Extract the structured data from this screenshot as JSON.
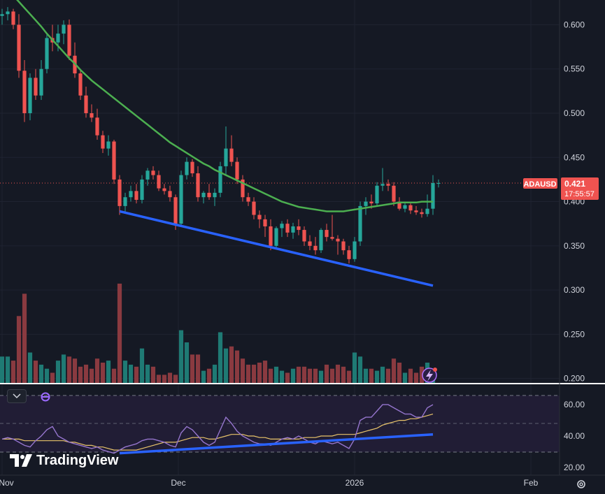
{
  "chart_data": {
    "type": "candlestick",
    "symbol": "ADAUSD",
    "last_price": "0.421",
    "countdown": "17:55:57",
    "price_axis": {
      "ticks": [
        "0.600",
        "0.550",
        "0.500",
        "0.450",
        "0.400",
        "0.350",
        "0.300",
        "0.250",
        "0.200"
      ],
      "ylim": [
        0.195,
        0.628
      ]
    },
    "time_axis": {
      "ticks": [
        "Nov",
        "Dec",
        "2026",
        "Feb"
      ]
    },
    "candles": [
      {
        "o": 0.61,
        "h": 0.618,
        "l": 0.6,
        "c": 0.612
      },
      {
        "o": 0.612,
        "h": 0.62,
        "l": 0.605,
        "c": 0.615
      },
      {
        "o": 0.615,
        "h": 0.618,
        "l": 0.595,
        "c": 0.6
      },
      {
        "o": 0.6,
        "h": 0.612,
        "l": 0.54,
        "c": 0.548
      },
      {
        "o": 0.548,
        "h": 0.56,
        "l": 0.49,
        "c": 0.5
      },
      {
        "o": 0.5,
        "h": 0.545,
        "l": 0.492,
        "c": 0.54
      },
      {
        "o": 0.54,
        "h": 0.55,
        "l": 0.515,
        "c": 0.52
      },
      {
        "o": 0.52,
        "h": 0.56,
        "l": 0.515,
        "c": 0.55
      },
      {
        "o": 0.55,
        "h": 0.59,
        "l": 0.545,
        "c": 0.585
      },
      {
        "o": 0.585,
        "h": 0.6,
        "l": 0.57,
        "c": 0.58
      },
      {
        "o": 0.58,
        "h": 0.6,
        "l": 0.57,
        "c": 0.59
      },
      {
        "o": 0.59,
        "h": 0.605,
        "l": 0.578,
        "c": 0.6
      },
      {
        "o": 0.6,
        "h": 0.606,
        "l": 0.56,
        "c": 0.565
      },
      {
        "o": 0.565,
        "h": 0.58,
        "l": 0.54,
        "c": 0.545
      },
      {
        "o": 0.545,
        "h": 0.55,
        "l": 0.515,
        "c": 0.52
      },
      {
        "o": 0.52,
        "h": 0.53,
        "l": 0.495,
        "c": 0.5
      },
      {
        "o": 0.5,
        "h": 0.51,
        "l": 0.49,
        "c": 0.495
      },
      {
        "o": 0.495,
        "h": 0.505,
        "l": 0.47,
        "c": 0.475
      },
      {
        "o": 0.475,
        "h": 0.48,
        "l": 0.455,
        "c": 0.46
      },
      {
        "o": 0.46,
        "h": 0.475,
        "l": 0.452,
        "c": 0.468
      },
      {
        "o": 0.468,
        "h": 0.47,
        "l": 0.42,
        "c": 0.425
      },
      {
        "o": 0.425,
        "h": 0.43,
        "l": 0.385,
        "c": 0.395
      },
      {
        "o": 0.395,
        "h": 0.41,
        "l": 0.388,
        "c": 0.405
      },
      {
        "o": 0.405,
        "h": 0.418,
        "l": 0.4,
        "c": 0.412
      },
      {
        "o": 0.412,
        "h": 0.42,
        "l": 0.398,
        "c": 0.402
      },
      {
        "o": 0.402,
        "h": 0.43,
        "l": 0.398,
        "c": 0.425
      },
      {
        "o": 0.425,
        "h": 0.438,
        "l": 0.418,
        "c": 0.435
      },
      {
        "o": 0.435,
        "h": 0.44,
        "l": 0.425,
        "c": 0.43
      },
      {
        "o": 0.43,
        "h": 0.435,
        "l": 0.412,
        "c": 0.415
      },
      {
        "o": 0.415,
        "h": 0.42,
        "l": 0.408,
        "c": 0.412
      },
      {
        "o": 0.412,
        "h": 0.418,
        "l": 0.4,
        "c": 0.405
      },
      {
        "o": 0.405,
        "h": 0.408,
        "l": 0.368,
        "c": 0.375
      },
      {
        "o": 0.375,
        "h": 0.435,
        "l": 0.372,
        "c": 0.43
      },
      {
        "o": 0.43,
        "h": 0.45,
        "l": 0.425,
        "c": 0.445
      },
      {
        "o": 0.445,
        "h": 0.448,
        "l": 0.428,
        "c": 0.432
      },
      {
        "o": 0.432,
        "h": 0.44,
        "l": 0.4,
        "c": 0.405
      },
      {
        "o": 0.405,
        "h": 0.412,
        "l": 0.398,
        "c": 0.41
      },
      {
        "o": 0.41,
        "h": 0.42,
        "l": 0.402,
        "c": 0.405
      },
      {
        "o": 0.405,
        "h": 0.415,
        "l": 0.395,
        "c": 0.41
      },
      {
        "o": 0.41,
        "h": 0.445,
        "l": 0.405,
        "c": 0.44
      },
      {
        "o": 0.44,
        "h": 0.485,
        "l": 0.43,
        "c": 0.46
      },
      {
        "o": 0.46,
        "h": 0.475,
        "l": 0.44,
        "c": 0.445
      },
      {
        "o": 0.445,
        "h": 0.45,
        "l": 0.42,
        "c": 0.425
      },
      {
        "o": 0.425,
        "h": 0.43,
        "l": 0.4,
        "c": 0.405
      },
      {
        "o": 0.405,
        "h": 0.41,
        "l": 0.395,
        "c": 0.4
      },
      {
        "o": 0.4,
        "h": 0.405,
        "l": 0.38,
        "c": 0.385
      },
      {
        "o": 0.385,
        "h": 0.39,
        "l": 0.37,
        "c": 0.38
      },
      {
        "o": 0.38,
        "h": 0.385,
        "l": 0.36,
        "c": 0.372
      },
      {
        "o": 0.372,
        "h": 0.38,
        "l": 0.345,
        "c": 0.35
      },
      {
        "o": 0.35,
        "h": 0.372,
        "l": 0.346,
        "c": 0.37
      },
      {
        "o": 0.37,
        "h": 0.378,
        "l": 0.36,
        "c": 0.375
      },
      {
        "o": 0.375,
        "h": 0.38,
        "l": 0.36,
        "c": 0.365
      },
      {
        "o": 0.365,
        "h": 0.376,
        "l": 0.358,
        "c": 0.372
      },
      {
        "o": 0.372,
        "h": 0.38,
        "l": 0.362,
        "c": 0.368
      },
      {
        "o": 0.368,
        "h": 0.372,
        "l": 0.35,
        "c": 0.355
      },
      {
        "o": 0.355,
        "h": 0.362,
        "l": 0.345,
        "c": 0.35
      },
      {
        "o": 0.35,
        "h": 0.36,
        "l": 0.34,
        "c": 0.345
      },
      {
        "o": 0.345,
        "h": 0.37,
        "l": 0.342,
        "c": 0.368
      },
      {
        "o": 0.368,
        "h": 0.375,
        "l": 0.355,
        "c": 0.36
      },
      {
        "o": 0.36,
        "h": 0.385,
        "l": 0.356,
        "c": 0.358
      },
      {
        "o": 0.358,
        "h": 0.362,
        "l": 0.34,
        "c": 0.355
      },
      {
        "o": 0.355,
        "h": 0.358,
        "l": 0.34,
        "c": 0.345
      },
      {
        "o": 0.345,
        "h": 0.35,
        "l": 0.33,
        "c": 0.335
      },
      {
        "o": 0.335,
        "h": 0.36,
        "l": 0.332,
        "c": 0.355
      },
      {
        "o": 0.355,
        "h": 0.4,
        "l": 0.35,
        "c": 0.395
      },
      {
        "o": 0.395,
        "h": 0.405,
        "l": 0.385,
        "c": 0.4
      },
      {
        "o": 0.4,
        "h": 0.408,
        "l": 0.392,
        "c": 0.398
      },
      {
        "o": 0.398,
        "h": 0.422,
        "l": 0.395,
        "c": 0.418
      },
      {
        "o": 0.418,
        "h": 0.438,
        "l": 0.412,
        "c": 0.42
      },
      {
        "o": 0.42,
        "h": 0.425,
        "l": 0.412,
        "c": 0.418
      },
      {
        "o": 0.418,
        "h": 0.422,
        "l": 0.395,
        "c": 0.4
      },
      {
        "o": 0.4,
        "h": 0.405,
        "l": 0.39,
        "c": 0.392
      },
      {
        "o": 0.392,
        "h": 0.4,
        "l": 0.388,
        "c": 0.396
      },
      {
        "o": 0.396,
        "h": 0.398,
        "l": 0.386,
        "c": 0.39
      },
      {
        "o": 0.39,
        "h": 0.395,
        "l": 0.385,
        "c": 0.388
      },
      {
        "o": 0.388,
        "h": 0.392,
        "l": 0.382,
        "c": 0.386
      },
      {
        "o": 0.386,
        "h": 0.408,
        "l": 0.383,
        "c": 0.392
      },
      {
        "o": 0.392,
        "h": 0.43,
        "l": 0.385,
        "c": 0.421
      },
      {
        "o": 0.421,
        "h": 0.425,
        "l": 0.416,
        "c": 0.421
      }
    ],
    "volume": [
      26,
      26,
      22,
      66,
      88,
      30,
      22,
      18,
      14,
      10,
      22,
      28,
      26,
      24,
      16,
      18,
      14,
      24,
      20,
      22,
      14,
      98,
      22,
      18,
      16,
      34,
      18,
      16,
      8,
      8,
      10,
      8,
      52,
      40,
      28,
      28,
      12,
      14,
      18,
      50,
      34,
      36,
      32,
      24,
      18,
      18,
      20,
      22,
      14,
      16,
      12,
      10,
      14,
      16,
      16,
      14,
      14,
      12,
      18,
      14,
      18,
      16,
      12,
      30,
      26,
      14,
      14,
      12,
      16,
      14,
      24,
      20,
      10,
      14,
      10,
      16,
      20,
      6
    ],
    "ma": [
      0.648,
      0.64,
      0.633,
      0.626,
      0.619,
      0.612,
      0.605,
      0.598,
      0.59,
      0.583,
      0.576,
      0.569,
      0.562,
      0.556,
      0.549,
      0.543,
      0.537,
      0.532,
      0.527,
      0.522,
      0.517,
      0.512,
      0.507,
      0.502,
      0.497,
      0.492,
      0.487,
      0.482,
      0.477,
      0.472,
      0.467,
      0.463,
      0.459,
      0.455,
      0.451,
      0.447,
      0.443,
      0.44,
      0.436,
      0.433,
      0.43,
      0.427,
      0.424,
      0.421,
      0.418,
      0.415,
      0.412,
      0.409,
      0.406,
      0.403,
      0.4,
      0.398,
      0.396,
      0.394,
      0.393,
      0.392,
      0.391,
      0.39,
      0.389,
      0.389,
      0.389,
      0.389,
      0.39,
      0.391,
      0.392,
      0.393,
      0.394,
      0.395,
      0.396,
      0.397,
      0.398,
      0.399,
      0.399,
      0.399,
      0.399,
      0.4,
      0.4,
      0.4
    ],
    "rsi": {
      "ticks": [
        "60.00",
        "40.00",
        "20.00"
      ],
      "ylim": [
        15,
        73
      ],
      "upper": 70,
      "mid": 50,
      "lower": 30,
      "values": [
        38,
        39,
        38,
        36,
        34,
        33,
        37,
        40,
        44,
        46,
        40,
        38,
        36,
        35,
        34,
        33,
        32,
        33,
        31,
        30,
        29,
        31,
        33,
        34,
        35,
        37,
        38,
        38,
        37,
        36,
        34,
        33,
        42,
        46,
        44,
        40,
        36,
        34,
        36,
        44,
        52,
        48,
        43,
        40,
        38,
        36,
        35,
        35,
        34,
        36,
        38,
        39,
        38,
        40,
        38,
        36,
        35,
        37,
        36,
        35,
        36,
        34,
        32,
        38,
        50,
        52,
        52,
        56,
        60,
        60,
        58,
        56,
        54,
        54,
        52,
        52,
        58,
        60
      ],
      "ma": [
        38,
        38,
        38,
        38,
        37,
        37,
        37,
        37,
        37,
        37,
        37,
        37,
        36,
        36,
        35,
        34,
        34,
        33,
        33,
        32,
        31,
        31,
        31,
        31,
        31,
        32,
        33,
        34,
        35,
        36,
        36,
        36,
        37,
        38,
        39,
        39,
        39,
        38,
        38,
        39,
        40,
        41,
        41,
        41,
        40,
        40,
        39,
        39,
        38,
        38,
        38,
        38,
        38,
        38,
        39,
        39,
        39,
        40,
        40,
        40,
        41,
        41,
        41,
        41,
        42,
        43,
        44,
        45,
        47,
        48,
        49,
        50,
        50,
        51,
        51,
        52,
        53,
        54
      ]
    },
    "trendlines": [
      {
        "pane": "price",
        "from": {
          "bar": 21,
          "price": 0.389
        },
        "to": {
          "bar": 77,
          "price": 0.305
        }
      },
      {
        "pane": "rsi",
        "from": {
          "bar": 21,
          "value": 29
        },
        "to": {
          "bar": 77,
          "value": 41
        }
      }
    ],
    "colors": {
      "background": "#151924",
      "up": "#26a69a",
      "down": "#ef5350",
      "vol_up": "#1f7a74",
      "vol_down": "#8a3a40",
      "ma": "#4caf50",
      "trend": "#2962ff",
      "rsi": "#9575cd",
      "rsi_ma": "#e9c46a",
      "grid": "#1f2331"
    }
  },
  "ui": {
    "logo_text": "TradingView",
    "icons": [
      "chevron-down-icon",
      "indicator-icon",
      "gear-icon",
      "lightning-icon"
    ]
  }
}
